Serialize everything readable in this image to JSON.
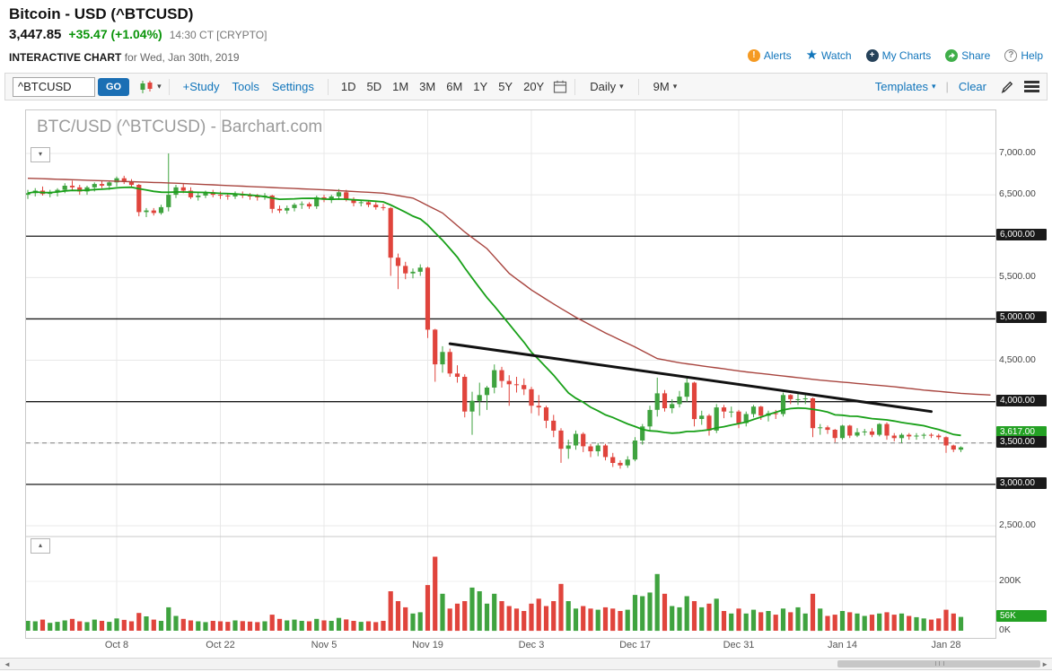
{
  "header": {
    "title": "Bitcoin - USD (^BTCUSD)",
    "last_price": "3,447.85",
    "change": "+35.47 (+1.04%)",
    "quote_time": "14:30 CT [CRYPTO]",
    "chart_label": "INTERACTIVE CHART",
    "chart_date": "for Wed, Jan 30th, 2019",
    "actions": [
      {
        "id": "alerts",
        "label": "Alerts",
        "icon": "alert-icon"
      },
      {
        "id": "watch",
        "label": "Watch",
        "icon": "star-icon"
      },
      {
        "id": "my-charts",
        "label": "My Charts",
        "icon": "plus-circle-icon"
      },
      {
        "id": "share",
        "label": "Share",
        "icon": "share-icon"
      },
      {
        "id": "help",
        "label": "Help",
        "icon": "help-icon"
      }
    ]
  },
  "toolbar": {
    "symbol_value": "^BTCUSD",
    "go_label": "GO",
    "links": [
      {
        "id": "study",
        "label": "+Study"
      },
      {
        "id": "tools",
        "label": "Tools"
      },
      {
        "id": "settings",
        "label": "Settings"
      }
    ],
    "ranges": [
      "1D",
      "5D",
      "1M",
      "3M",
      "6M",
      "1Y",
      "5Y",
      "20Y"
    ],
    "frequency": "Daily",
    "span": "9M",
    "templates_label": "Templates",
    "clear_label": "Clear"
  },
  "icons": {
    "caret": "▾",
    "pane_collapse": "▾",
    "pane_expand": "▴",
    "scroll_left": "◄",
    "scroll_right": "►"
  },
  "chart_data": {
    "type": "candlestick",
    "title": "BTC/USD (^BTCUSD) - Barchart.com",
    "symbol": "^BTCUSD",
    "frequency": "Daily",
    "start_date": "2018-09-26",
    "ohlcv_format": [
      "open",
      "high",
      "low",
      "close",
      "volume_thousands"
    ],
    "x_ticks": [
      {
        "day": 12,
        "label": "Oct 8"
      },
      {
        "day": 26,
        "label": "Oct 22"
      },
      {
        "day": 40,
        "label": "Nov 5"
      },
      {
        "day": 54,
        "label": "Nov 19"
      },
      {
        "day": 68,
        "label": "Dec 3"
      },
      {
        "day": 82,
        "label": "Dec 17"
      },
      {
        "day": 96,
        "label": "Dec 31"
      },
      {
        "day": 110,
        "label": "Jan 14"
      },
      {
        "day": 124,
        "label": "Jan 28"
      }
    ],
    "candles": [
      [
        6500,
        6560,
        6450,
        6520,
        40
      ],
      [
        6520,
        6580,
        6480,
        6550,
        38
      ],
      [
        6550,
        6600,
        6490,
        6510,
        45
      ],
      [
        6510,
        6560,
        6470,
        6530,
        32
      ],
      [
        6530,
        6580,
        6480,
        6560,
        36
      ],
      [
        6560,
        6640,
        6520,
        6610,
        42
      ],
      [
        6610,
        6670,
        6560,
        6590,
        48
      ],
      [
        6590,
        6620,
        6500,
        6540,
        38
      ],
      [
        6540,
        6610,
        6500,
        6590,
        35
      ],
      [
        6590,
        6650,
        6540,
        6630,
        45
      ],
      [
        6630,
        6670,
        6580,
        6610,
        40
      ],
      [
        6610,
        6660,
        6560,
        6650,
        36
      ],
      [
        6650,
        6720,
        6600,
        6700,
        50
      ],
      [
        6700,
        6730,
        6630,
        6660,
        44
      ],
      [
        6660,
        6690,
        6590,
        6620,
        38
      ],
      [
        6620,
        6630,
        6240,
        6290,
        72
      ],
      [
        6290,
        6340,
        6230,
        6310,
        58
      ],
      [
        6310,
        6340,
        6250,
        6280,
        45
      ],
      [
        6280,
        6380,
        6260,
        6350,
        40
      ],
      [
        6350,
        7000,
        6300,
        6500,
        95
      ],
      [
        6500,
        6620,
        6460,
        6590,
        60
      ],
      [
        6590,
        6640,
        6520,
        6550,
        48
      ],
      [
        6550,
        6590,
        6450,
        6470,
        42
      ],
      [
        6470,
        6530,
        6430,
        6490,
        38
      ],
      [
        6490,
        6550,
        6460,
        6530,
        35
      ],
      [
        6530,
        6560,
        6470,
        6500,
        40
      ],
      [
        6500,
        6540,
        6450,
        6490,
        38
      ],
      [
        6490,
        6520,
        6440,
        6480,
        36
      ],
      [
        6480,
        6540,
        6450,
        6510,
        42
      ],
      [
        6510,
        6540,
        6460,
        6490,
        39
      ],
      [
        6490,
        6520,
        6440,
        6480,
        37
      ],
      [
        6480,
        6510,
        6430,
        6470,
        35
      ],
      [
        6470,
        6520,
        6440,
        6490,
        38
      ],
      [
        6490,
        6500,
        6280,
        6330,
        65
      ],
      [
        6330,
        6370,
        6280,
        6310,
        48
      ],
      [
        6310,
        6370,
        6270,
        6340,
        42
      ],
      [
        6340,
        6400,
        6300,
        6380,
        45
      ],
      [
        6380,
        6420,
        6330,
        6390,
        40
      ],
      [
        6390,
        6410,
        6330,
        6360,
        38
      ],
      [
        6360,
        6490,
        6330,
        6470,
        48
      ],
      [
        6470,
        6500,
        6410,
        6440,
        42
      ],
      [
        6440,
        6500,
        6400,
        6480,
        40
      ],
      [
        6480,
        6570,
        6440,
        6530,
        52
      ],
      [
        6530,
        6560,
        6420,
        6440,
        46
      ],
      [
        6440,
        6470,
        6360,
        6400,
        40
      ],
      [
        6400,
        6440,
        6360,
        6410,
        36
      ],
      [
        6410,
        6430,
        6350,
        6380,
        38
      ],
      [
        6380,
        6410,
        6320,
        6350,
        35
      ],
      [
        6350,
        6390,
        6310,
        6340,
        40
      ],
      [
        6340,
        6350,
        5520,
        5740,
        160
      ],
      [
        5740,
        5790,
        5360,
        5640,
        120
      ],
      [
        5640,
        5690,
        5480,
        5550,
        95
      ],
      [
        5550,
        5610,
        5490,
        5570,
        70
      ],
      [
        5570,
        5660,
        5520,
        5620,
        75
      ],
      [
        5620,
        5630,
        4770,
        4870,
        185
      ],
      [
        4870,
        4880,
        4240,
        4450,
        300
      ],
      [
        4450,
        4670,
        4350,
        4600,
        150
      ],
      [
        4600,
        4640,
        4300,
        4340,
        90
      ],
      [
        4340,
        4440,
        4230,
        4300,
        110
      ],
      [
        4300,
        4330,
        3810,
        3880,
        120
      ],
      [
        3880,
        4120,
        3600,
        4010,
        175
      ],
      [
        4010,
        4230,
        3830,
        4080,
        160
      ],
      [
        4080,
        4190,
        3900,
        4170,
        110
      ],
      [
        4170,
        4450,
        4100,
        4380,
        150
      ],
      [
        4380,
        4420,
        4170,
        4250,
        120
      ],
      [
        4250,
        4320,
        3950,
        4210,
        100
      ],
      [
        4210,
        4300,
        4110,
        4200,
        90
      ],
      [
        4200,
        4280,
        4080,
        4150,
        80
      ],
      [
        4150,
        4180,
        3860,
        3950,
        110
      ],
      [
        3950,
        4080,
        3830,
        3930,
        130
      ],
      [
        3930,
        3950,
        3680,
        3770,
        100
      ],
      [
        3770,
        3840,
        3570,
        3650,
        120
      ],
      [
        3650,
        3680,
        3260,
        3430,
        190
      ],
      [
        3430,
        3540,
        3310,
        3470,
        120
      ],
      [
        3470,
        3650,
        3420,
        3610,
        90
      ],
      [
        3610,
        3630,
        3390,
        3460,
        100
      ],
      [
        3460,
        3490,
        3330,
        3400,
        90
      ],
      [
        3400,
        3500,
        3340,
        3470,
        85
      ],
      [
        3470,
        3490,
        3290,
        3330,
        95
      ],
      [
        3330,
        3380,
        3210,
        3260,
        90
      ],
      [
        3260,
        3290,
        3190,
        3230,
        80
      ],
      [
        3230,
        3340,
        3200,
        3300,
        85
      ],
      [
        3300,
        3570,
        3280,
        3530,
        145
      ],
      [
        3530,
        3730,
        3480,
        3700,
        140
      ],
      [
        3700,
        3950,
        3640,
        3900,
        155
      ],
      [
        3900,
        4290,
        3820,
        4100,
        230
      ],
      [
        4100,
        4140,
        3880,
        3920,
        150
      ],
      [
        3920,
        4030,
        3860,
        3970,
        100
      ],
      [
        3970,
        4130,
        3930,
        4060,
        95
      ],
      [
        4060,
        4300,
        4000,
        4230,
        140
      ],
      [
        4230,
        4240,
        3700,
        3790,
        120
      ],
      [
        3790,
        3890,
        3720,
        3830,
        95
      ],
      [
        3830,
        3850,
        3590,
        3650,
        110
      ],
      [
        3650,
        3970,
        3620,
        3930,
        130
      ],
      [
        3930,
        3960,
        3800,
        3880,
        80
      ],
      [
        3880,
        3940,
        3810,
        3880,
        70
      ],
      [
        3880,
        3900,
        3680,
        3740,
        90
      ],
      [
        3740,
        3880,
        3700,
        3850,
        70
      ],
      [
        3850,
        3960,
        3810,
        3940,
        85
      ],
      [
        3940,
        3950,
        3780,
        3830,
        75
      ],
      [
        3830,
        3890,
        3760,
        3860,
        80
      ],
      [
        3860,
        3900,
        3790,
        3850,
        65
      ],
      [
        3850,
        4110,
        3820,
        4080,
        90
      ],
      [
        4080,
        4090,
        3970,
        4030,
        75
      ],
      [
        4030,
        4120,
        3960,
        4030,
        95
      ],
      [
        4030,
        4090,
        3970,
        4040,
        70
      ],
      [
        4040,
        4050,
        3570,
        3680,
        150
      ],
      [
        3680,
        3730,
        3600,
        3690,
        90
      ],
      [
        3690,
        3710,
        3610,
        3660,
        60
      ],
      [
        3660,
        3670,
        3510,
        3560,
        65
      ],
      [
        3560,
        3720,
        3540,
        3710,
        80
      ],
      [
        3710,
        3720,
        3560,
        3590,
        75
      ],
      [
        3590,
        3680,
        3570,
        3630,
        70
      ],
      [
        3630,
        3670,
        3590,
        3640,
        60
      ],
      [
        3640,
        3680,
        3570,
        3600,
        65
      ],
      [
        3600,
        3740,
        3580,
        3730,
        70
      ],
      [
        3730,
        3750,
        3540,
        3590,
        75
      ],
      [
        3590,
        3620,
        3520,
        3560,
        65
      ],
      [
        3560,
        3620,
        3500,
        3600,
        70
      ],
      [
        3600,
        3620,
        3540,
        3580,
        60
      ],
      [
        3580,
        3620,
        3540,
        3590,
        55
      ],
      [
        3590,
        3620,
        3550,
        3600,
        50
      ],
      [
        3600,
        3620,
        3560,
        3590,
        45
      ],
      [
        3590,
        3610,
        3540,
        3570,
        50
      ],
      [
        3570,
        3580,
        3380,
        3470,
        85
      ],
      [
        3470,
        3480,
        3390,
        3420,
        70
      ],
      [
        3420,
        3460,
        3390,
        3448,
        56
      ]
    ],
    "y_axis": {
      "range_visible": [
        2500,
        7000
      ],
      "labels": [
        {
          "value": 7000,
          "label": "7,000.00"
        },
        {
          "value": 6500,
          "label": "6,500.00"
        },
        {
          "value": 5500,
          "label": "5,500.00"
        },
        {
          "value": 4500,
          "label": "4,500.00"
        },
        {
          "value": 2500,
          "label": "2,500.00"
        }
      ],
      "badges": [
        {
          "value": 6000,
          "label": "6,000.00",
          "style": "black"
        },
        {
          "value": 5000,
          "label": "5,000.00",
          "style": "black"
        },
        {
          "value": 4000,
          "label": "4,000.00",
          "style": "black"
        },
        {
          "value": 3617,
          "label": "3,617.00",
          "style": "green"
        },
        {
          "value": 3500,
          "label": "3,500.00",
          "style": "black"
        },
        {
          "value": 3000,
          "label": "3,000.00",
          "style": "black"
        }
      ]
    },
    "volume_axis": {
      "labels": [
        {
          "k": 200,
          "label": "200K"
        },
        {
          "k": 0,
          "label": "0K"
        }
      ],
      "badge": {
        "k": 56,
        "label": "56K"
      }
    },
    "overlays": {
      "sma_short": {
        "name": "20-period moving average",
        "color": "#18a018",
        "period": 20
      },
      "sma_long": {
        "name": "long moving average",
        "color": "#a8453f",
        "points": [
          [
            0,
            6700
          ],
          [
            10,
            6670
          ],
          [
            20,
            6640
          ],
          [
            30,
            6600
          ],
          [
            40,
            6560
          ],
          [
            48,
            6520
          ],
          [
            52,
            6460
          ],
          [
            56,
            6280
          ],
          [
            59,
            6050
          ],
          [
            62,
            5850
          ],
          [
            65,
            5550
          ],
          [
            68,
            5350
          ],
          [
            71,
            5180
          ],
          [
            74,
            5020
          ],
          [
            78,
            4830
          ],
          [
            82,
            4660
          ],
          [
            85,
            4520
          ],
          [
            88,
            4470
          ],
          [
            92,
            4420
          ],
          [
            97,
            4360
          ],
          [
            102,
            4310
          ],
          [
            107,
            4260
          ],
          [
            112,
            4220
          ],
          [
            117,
            4180
          ],
          [
            121,
            4140
          ],
          [
            126,
            4100
          ],
          [
            130,
            4080
          ]
        ]
      },
      "trendline": {
        "color": "#111111",
        "from": [
          57,
          4700
        ],
        "to": [
          122,
          3880
        ]
      },
      "hlines_solid": {
        "color": "#1a1a1a",
        "values": [
          6000,
          5000,
          4000,
          3000
        ]
      },
      "hline_dashed": {
        "color": "#808080",
        "value": 3500
      }
    },
    "colors": {
      "up": "#3fa33f",
      "down": "#e0443c"
    }
  }
}
